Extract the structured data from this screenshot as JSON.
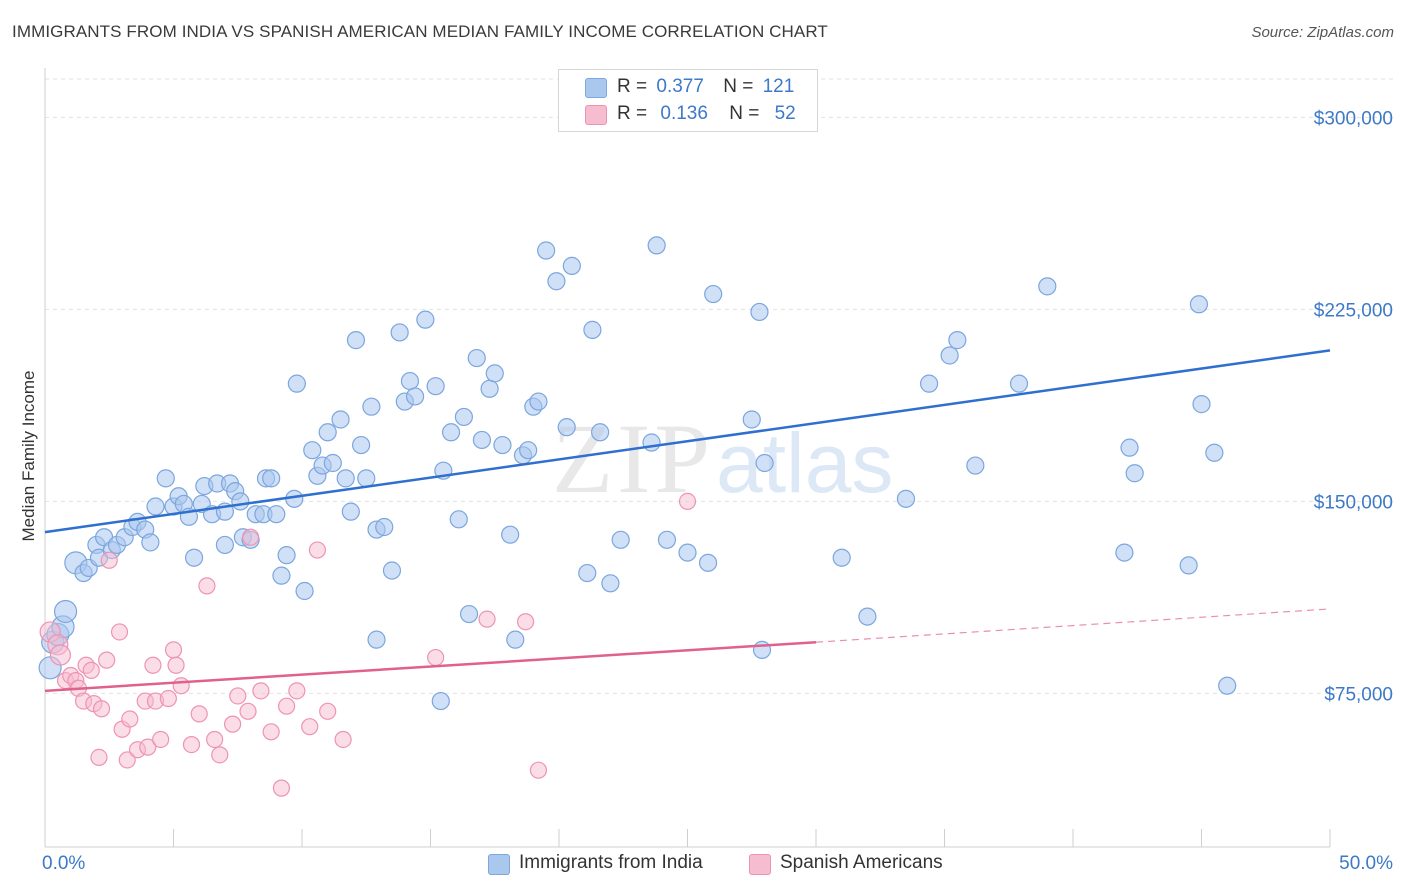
{
  "title": "IMMIGRANTS FROM INDIA VS SPANISH AMERICAN MEDIAN FAMILY INCOME CORRELATION CHART",
  "source": "Source: ZipAtlas.com",
  "watermark": {
    "zip": "ZIP",
    "atlas": "atlas"
  },
  "legend": {
    "rows": [
      {
        "r_label": "R =",
        "r_value": "0.377",
        "n_label": "N =",
        "n_value": "121"
      },
      {
        "r_label": "R =",
        "r_value": "0.136",
        "n_label": "N =",
        "n_value": "52"
      }
    ]
  },
  "bottom_legend": {
    "india": "Immigrants from India",
    "spanish": "Spanish Americans"
  },
  "colors": {
    "india_fill": "#aac7ee",
    "india_stroke": "#7ba6de",
    "india_line": "#2e6fcf",
    "spanish_fill": "#f6bccf",
    "spanish_stroke": "#ee93b3",
    "spanish_line": "#e0608e",
    "axis_text": "#3d78c9"
  },
  "chart_data": {
    "type": "scatter",
    "title": "IMMIGRANTS FROM INDIA VS SPANISH AMERICAN MEDIAN FAMILY INCOME CORRELATION CHART",
    "xlabel": "",
    "ylabel": "Median Family Income",
    "xlim": [
      0,
      50
    ],
    "ylim": [
      15000,
      315000
    ],
    "x_tick_labels": [
      {
        "value": 0,
        "label": "0.0%"
      },
      {
        "value": 50,
        "label": "50.0%"
      }
    ],
    "y_ticks": [
      {
        "value": 75000,
        "label": "$75,000"
      },
      {
        "value": 150000,
        "label": "$150,000"
      },
      {
        "value": 225000,
        "label": "$225,000"
      },
      {
        "value": 300000,
        "label": "$300,000"
      }
    ],
    "grid": true,
    "series": [
      {
        "name": "Immigrants from India",
        "trend": {
          "x": [
            0,
            50
          ],
          "y": [
            138000,
            209000
          ]
        },
        "points": [
          [
            0.2,
            85000
          ],
          [
            0.3,
            95000
          ],
          [
            0.5,
            98000
          ],
          [
            0.7,
            101000
          ],
          [
            0.8,
            107000
          ],
          [
            1.2,
            126000
          ],
          [
            1.5,
            122000
          ],
          [
            1.7,
            124000
          ],
          [
            2.0,
            133000
          ],
          [
            2.1,
            128000
          ],
          [
            2.3,
            136000
          ],
          [
            2.6,
            131000
          ],
          [
            2.8,
            133000
          ],
          [
            3.1,
            136000
          ],
          [
            3.4,
            140000
          ],
          [
            3.6,
            142000
          ],
          [
            3.9,
            139000
          ],
          [
            4.1,
            134000
          ],
          [
            4.3,
            148000
          ],
          [
            4.7,
            159000
          ],
          [
            5.0,
            148000
          ],
          [
            5.2,
            152000
          ],
          [
            5.4,
            149000
          ],
          [
            5.6,
            144000
          ],
          [
            5.8,
            128000
          ],
          [
            6.1,
            149000
          ],
          [
            6.2,
            156000
          ],
          [
            6.5,
            145000
          ],
          [
            6.7,
            157000
          ],
          [
            7.0,
            146000
          ],
          [
            7.2,
            157000
          ],
          [
            7.4,
            154000
          ],
          [
            7.6,
            150000
          ],
          [
            7.7,
            136000
          ],
          [
            8.0,
            135000
          ],
          [
            8.2,
            145000
          ],
          [
            8.5,
            145000
          ],
          [
            8.6,
            159000
          ],
          [
            8.8,
            159000
          ],
          [
            9.0,
            145000
          ],
          [
            9.2,
            121000
          ],
          [
            9.4,
            129000
          ],
          [
            9.7,
            151000
          ],
          [
            9.8,
            196000
          ],
          [
            10.1,
            115000
          ],
          [
            10.4,
            170000
          ],
          [
            10.6,
            160000
          ],
          [
            10.8,
            164000
          ],
          [
            11.0,
            177000
          ],
          [
            11.2,
            165000
          ],
          [
            11.5,
            182000
          ],
          [
            11.7,
            159000
          ],
          [
            11.9,
            146000
          ],
          [
            12.1,
            213000
          ],
          [
            12.3,
            172000
          ],
          [
            12.5,
            159000
          ],
          [
            12.7,
            187000
          ],
          [
            12.9,
            139000
          ],
          [
            13.2,
            140000
          ],
          [
            13.5,
            123000
          ],
          [
            13.8,
            216000
          ],
          [
            14.0,
            189000
          ],
          [
            14.2,
            197000
          ],
          [
            14.4,
            191000
          ],
          [
            14.8,
            221000
          ],
          [
            15.2,
            195000
          ],
          [
            15.5,
            162000
          ],
          [
            15.8,
            177000
          ],
          [
            16.1,
            143000
          ],
          [
            16.3,
            183000
          ],
          [
            16.5,
            106000
          ],
          [
            16.8,
            206000
          ],
          [
            17.0,
            174000
          ],
          [
            17.3,
            194000
          ],
          [
            17.5,
            200000
          ],
          [
            17.8,
            172000
          ],
          [
            18.1,
            137000
          ],
          [
            18.3,
            96000
          ],
          [
            18.6,
            168000
          ],
          [
            18.8,
            170000
          ],
          [
            19.0,
            187000
          ],
          [
            19.2,
            189000
          ],
          [
            19.9,
            236000
          ],
          [
            20.3,
            179000
          ],
          [
            20.5,
            242000
          ],
          [
            21.1,
            122000
          ],
          [
            21.3,
            217000
          ],
          [
            21.6,
            177000
          ],
          [
            22.0,
            118000
          ],
          [
            22.4,
            135000
          ],
          [
            23.6,
            173000
          ],
          [
            23.8,
            250000
          ],
          [
            24.2,
            135000
          ],
          [
            25.0,
            130000
          ],
          [
            25.8,
            126000
          ],
          [
            26.0,
            231000
          ],
          [
            27.5,
            182000
          ],
          [
            27.8,
            224000
          ],
          [
            27.9,
            92000
          ],
          [
            28.0,
            165000
          ],
          [
            31.0,
            128000
          ],
          [
            32.0,
            105000
          ],
          [
            33.5,
            151000
          ],
          [
            34.4,
            196000
          ],
          [
            35.2,
            207000
          ],
          [
            35.5,
            213000
          ],
          [
            36.2,
            164000
          ],
          [
            37.9,
            196000
          ],
          [
            39.0,
            234000
          ],
          [
            42.0,
            130000
          ],
          [
            42.2,
            171000
          ],
          [
            42.4,
            161000
          ],
          [
            44.5,
            125000
          ],
          [
            44.9,
            227000
          ],
          [
            45.0,
            188000
          ],
          [
            45.5,
            169000
          ],
          [
            46.0,
            78000
          ],
          [
            15.4,
            72000
          ],
          [
            19.5,
            248000
          ],
          [
            12.9,
            96000
          ],
          [
            7.0,
            133000
          ]
        ]
      },
      {
        "name": "Spanish Americans",
        "trend": {
          "x": [
            0,
            30
          ],
          "y": [
            76000,
            95000
          ]
        },
        "trend_dashed": {
          "x": [
            30,
            50
          ],
          "y": [
            95000,
            108000
          ]
        },
        "points": [
          [
            0.2,
            99000
          ],
          [
            0.5,
            94000
          ],
          [
            0.6,
            90000
          ],
          [
            0.8,
            80000
          ],
          [
            1.0,
            82000
          ],
          [
            1.2,
            80000
          ],
          [
            1.3,
            77000
          ],
          [
            1.5,
            72000
          ],
          [
            1.6,
            86000
          ],
          [
            1.8,
            84000
          ],
          [
            1.9,
            71000
          ],
          [
            2.1,
            50000
          ],
          [
            2.2,
            69000
          ],
          [
            2.4,
            88000
          ],
          [
            2.5,
            127000
          ],
          [
            2.9,
            99000
          ],
          [
            3.0,
            61000
          ],
          [
            3.2,
            49000
          ],
          [
            3.3,
            65000
          ],
          [
            3.6,
            53000
          ],
          [
            3.9,
            72000
          ],
          [
            4.0,
            54000
          ],
          [
            4.2,
            86000
          ],
          [
            4.3,
            72000
          ],
          [
            4.5,
            57000
          ],
          [
            4.8,
            73000
          ],
          [
            5.0,
            92000
          ],
          [
            5.1,
            86000
          ],
          [
            5.3,
            78000
          ],
          [
            5.7,
            55000
          ],
          [
            6.0,
            67000
          ],
          [
            6.3,
            117000
          ],
          [
            6.6,
            57000
          ],
          [
            6.8,
            51000
          ],
          [
            7.3,
            63000
          ],
          [
            7.5,
            74000
          ],
          [
            7.9,
            68000
          ],
          [
            8.0,
            136000
          ],
          [
            8.4,
            76000
          ],
          [
            8.8,
            60000
          ],
          [
            9.2,
            38000
          ],
          [
            9.4,
            70000
          ],
          [
            9.8,
            76000
          ],
          [
            10.3,
            62000
          ],
          [
            10.6,
            131000
          ],
          [
            11.0,
            68000
          ],
          [
            11.6,
            57000
          ],
          [
            15.2,
            89000
          ],
          [
            17.2,
            104000
          ],
          [
            18.7,
            103000
          ],
          [
            19.2,
            45000
          ],
          [
            25.0,
            150000
          ]
        ]
      }
    ]
  }
}
